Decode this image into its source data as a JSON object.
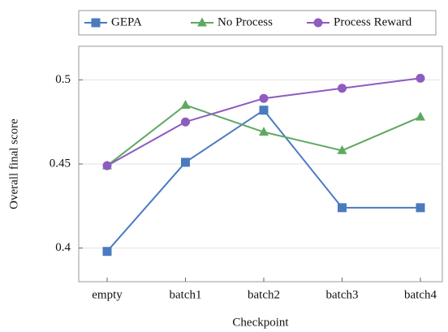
{
  "chart_data": {
    "type": "line",
    "x_label": "Checkpoint",
    "y_label": "Overall final score",
    "categories": [
      "empty",
      "batch1",
      "batch2",
      "batch3",
      "batch4"
    ],
    "series": [
      {
        "name": "GEPA",
        "color": "#4a7bbf",
        "marker": "square",
        "values": [
          0.398,
          0.451,
          0.482,
          0.424,
          0.424
        ]
      },
      {
        "name": "No Process",
        "color": "#5fa862",
        "marker": "triangle",
        "values": [
          0.449,
          0.485,
          0.469,
          0.458,
          0.478
        ]
      },
      {
        "name": "Process Reward",
        "color": "#8e5bbf",
        "marker": "circle",
        "values": [
          0.449,
          0.475,
          0.489,
          0.495,
          0.501
        ]
      }
    ],
    "ylim": [
      0.38,
      0.52
    ],
    "yticks": [
      0.4,
      0.45,
      0.5
    ],
    "grid": true,
    "legend": "top"
  }
}
